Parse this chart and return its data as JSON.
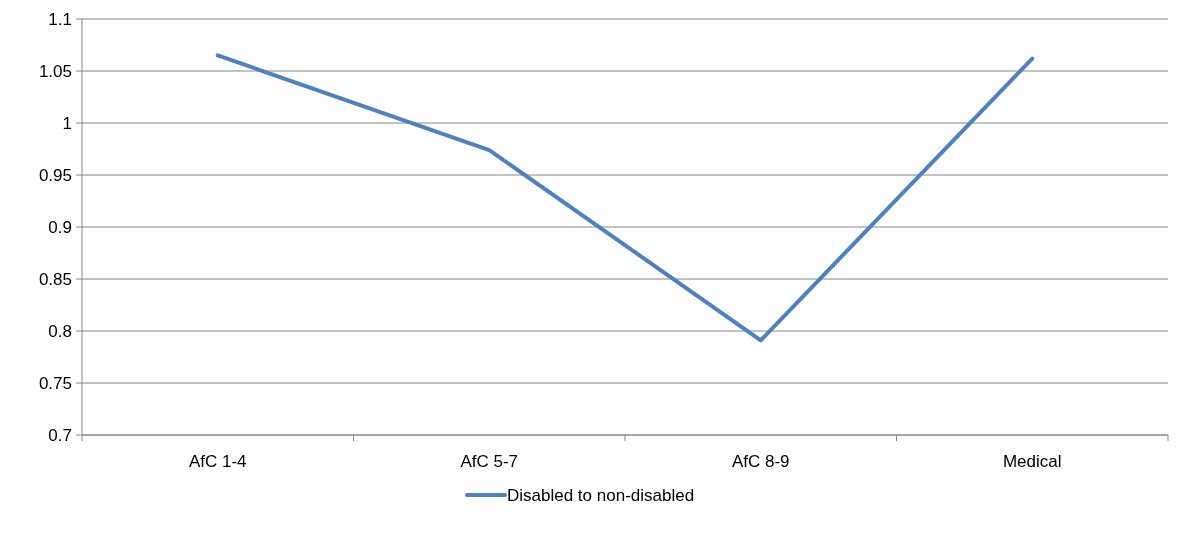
{
  "chart_data": {
    "type": "line",
    "categories": [
      "AfC 1-4",
      "AfC 5-7",
      "AfC 8-9",
      "Medical"
    ],
    "series": [
      {
        "name": "Disabled to non-disabled",
        "color": "#4f81bd",
        "values": [
          1.065,
          0.974,
          0.791,
          1.062
        ]
      }
    ],
    "ylim": [
      0.7,
      1.1
    ],
    "yticks": [
      0.7,
      0.75,
      0.8,
      0.85,
      0.9,
      0.95,
      1,
      1.05,
      1.1
    ],
    "grid": "y",
    "legend": "bottom",
    "marker": "none",
    "line_style": "solid"
  }
}
